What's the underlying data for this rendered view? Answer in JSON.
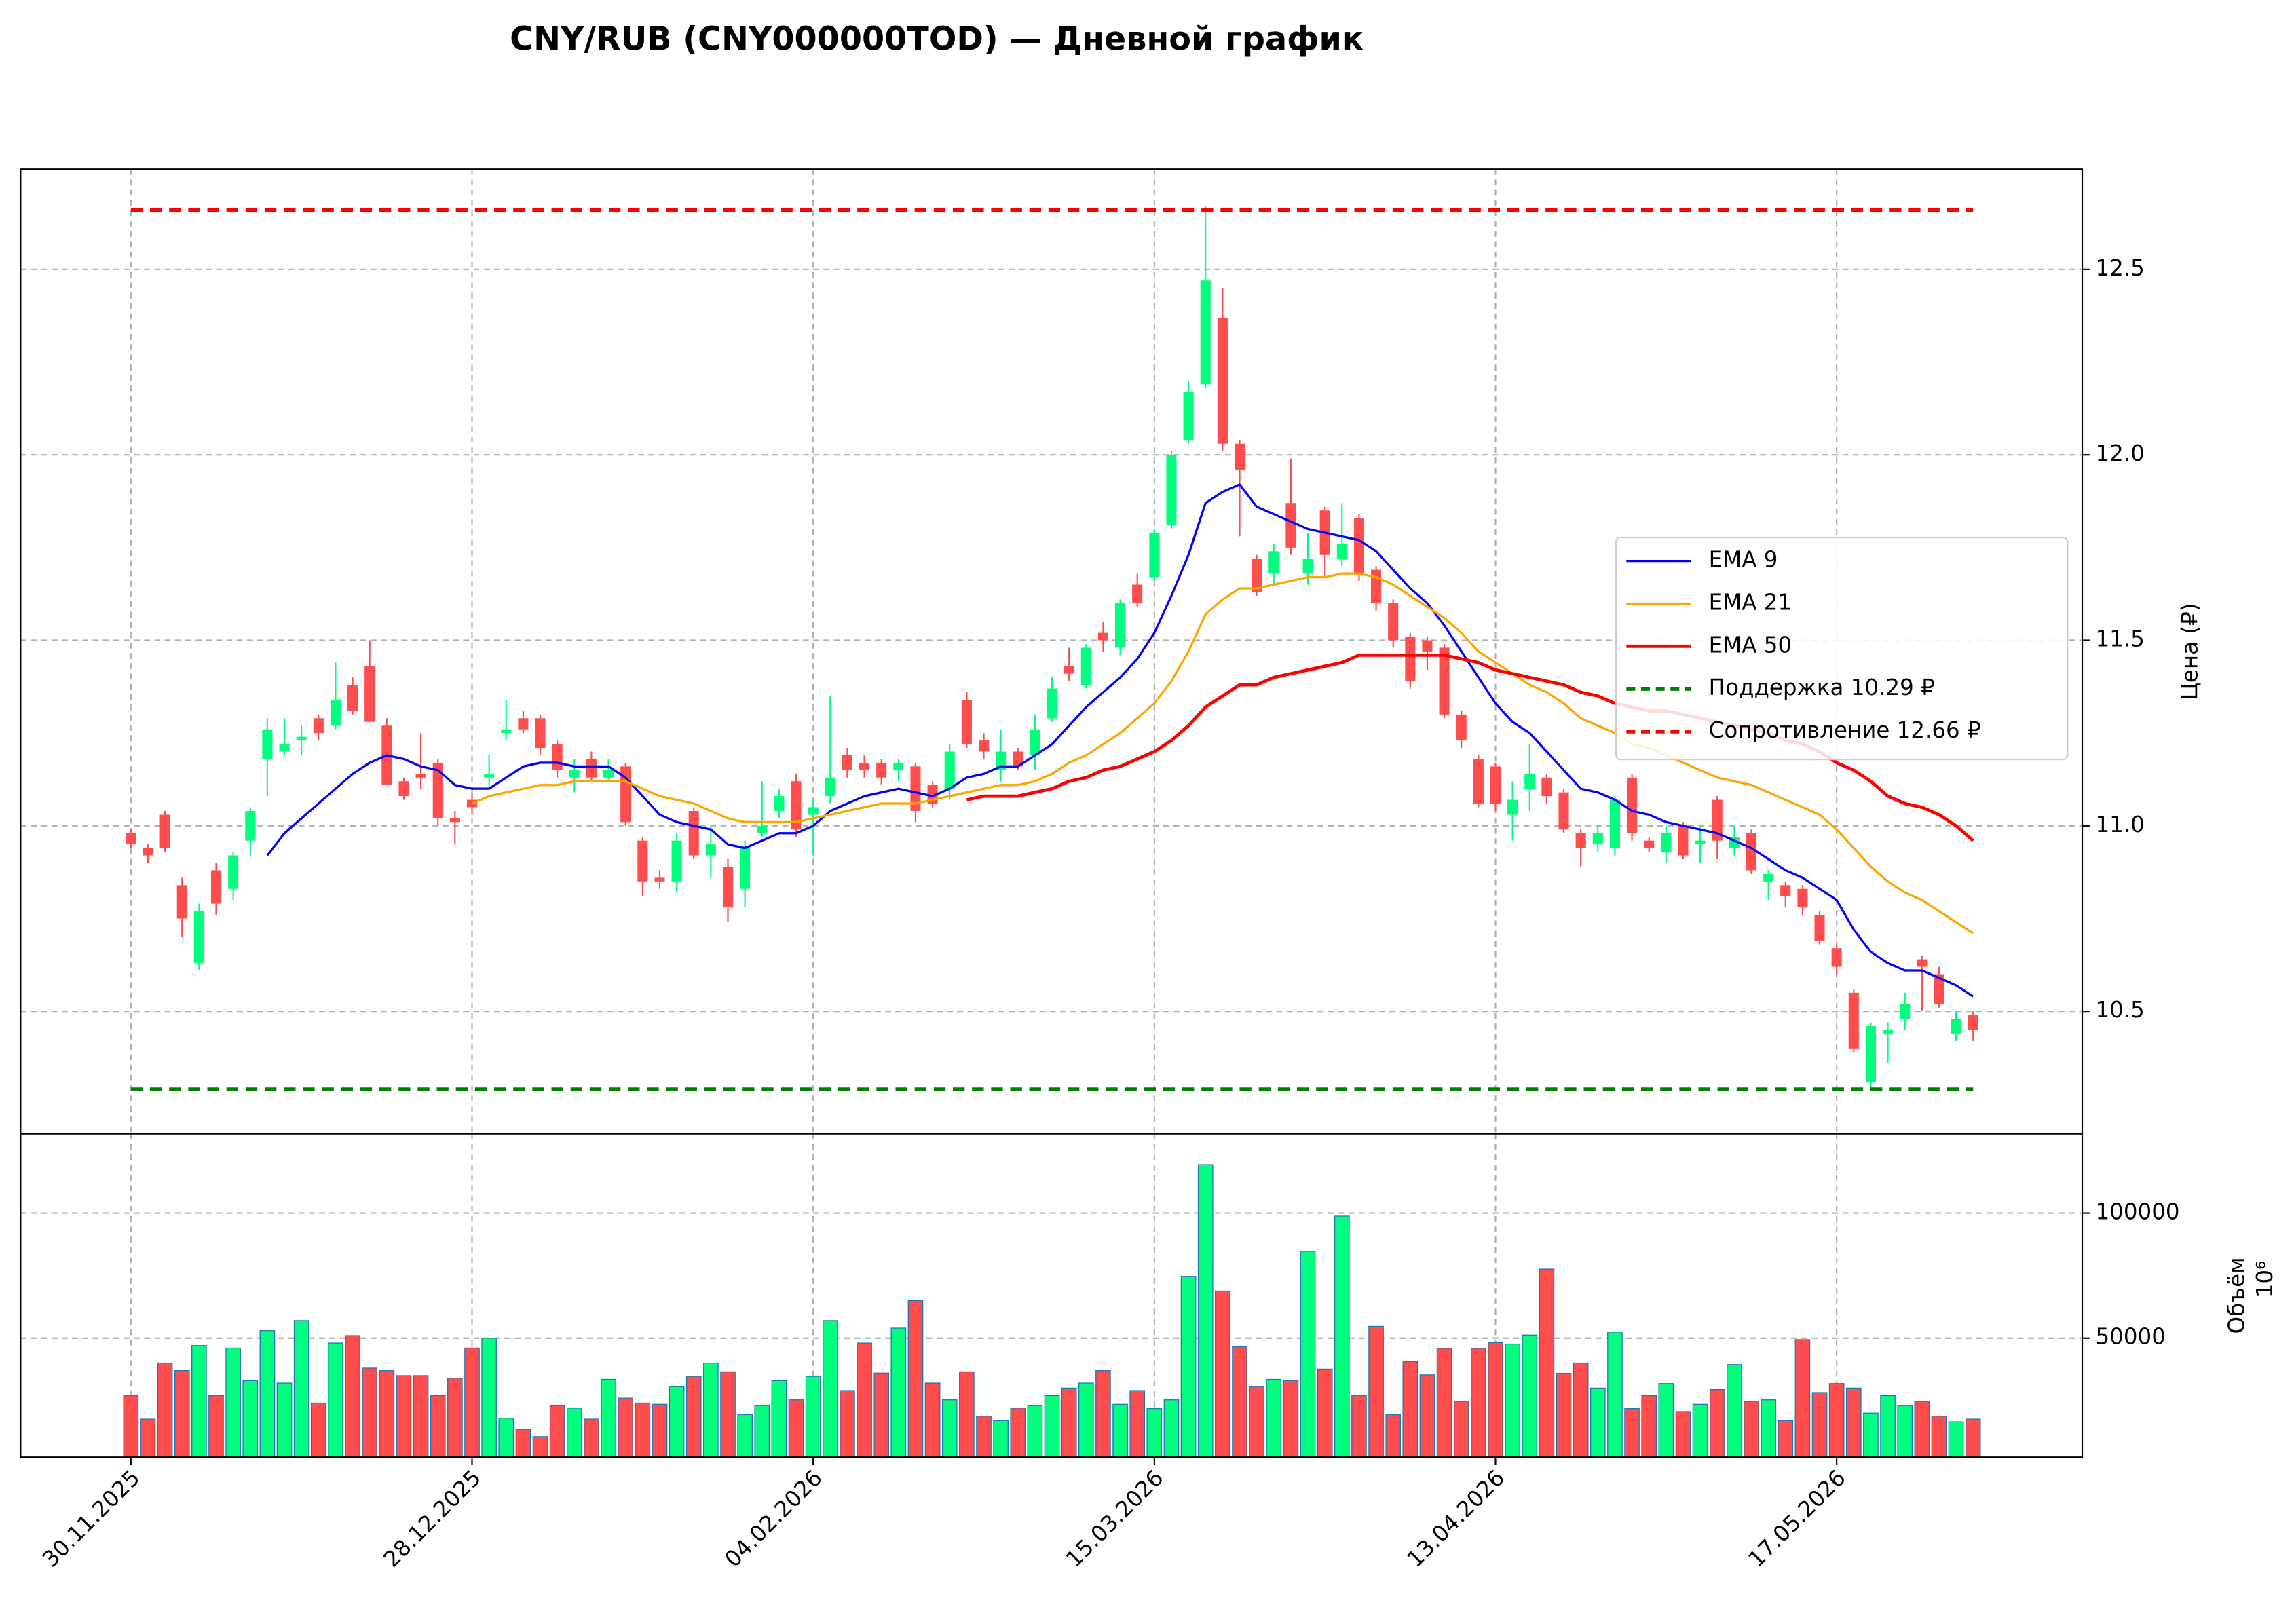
{
  "chart_data": {
    "type": "candlestick",
    "title": "CNY/RUB (CNY000000TOD) — Дневной график",
    "ylabel": "Цена (₽)",
    "grid": true,
    "legend": "right",
    "up_color": "#00ff7f",
    "down_color": "#ff4c4c",
    "categories": [
      "30.11.2025",
      null,
      null,
      null,
      null,
      null,
      null,
      null,
      null,
      null,
      null,
      null,
      null,
      null,
      null,
      null,
      null,
      null,
      null,
      null,
      "28.12.2025",
      null,
      null,
      null,
      null,
      null,
      null,
      null,
      null,
      null,
      null,
      null,
      null,
      null,
      null,
      null,
      null,
      null,
      null,
      null,
      "04.02.2026",
      null,
      null,
      null,
      null,
      null,
      null,
      null,
      null,
      null,
      null,
      null,
      null,
      null,
      null,
      null,
      null,
      null,
      null,
      null,
      "15.03.2026",
      null,
      null,
      null,
      null,
      null,
      null,
      null,
      null,
      null,
      null,
      null,
      null,
      null,
      null,
      null,
      null,
      null,
      null,
      null,
      "13.04.2026",
      null,
      null,
      null,
      null,
      null,
      null,
      null,
      null,
      null,
      null,
      null,
      null,
      null,
      null,
      null,
      null,
      null,
      null,
      null,
      "17.05.2026",
      null,
      null,
      null,
      null,
      null,
      null,
      null,
      null
    ],
    "open": [
      10.98,
      10.94,
      11.03,
      10.84,
      10.63,
      10.88,
      10.83,
      10.96,
      11.18,
      11.2,
      11.23,
      11.29,
      11.27,
      11.38,
      11.43,
      11.27,
      11.12,
      11.14,
      11.17,
      11.02,
      11.07,
      11.13,
      11.25,
      11.29,
      11.29,
      11.22,
      11.13,
      11.18,
      11.13,
      11.16,
      10.96,
      10.86,
      10.85,
      11.04,
      10.92,
      10.89,
      10.83,
      10.98,
      11.04,
      11.12,
      11.03,
      11.08,
      11.19,
      11.17,
      11.17,
      11.15,
      11.16,
      11.11,
      11.1,
      11.34,
      11.23,
      11.15,
      11.2,
      11.19,
      11.29,
      11.43,
      11.38,
      11.52,
      11.48,
      11.65,
      11.67,
      11.81,
      12.04,
      12.19,
      12.37,
      12.03,
      11.72,
      11.68,
      11.87,
      11.68,
      11.85,
      11.72,
      11.83,
      11.69,
      11.6,
      11.51,
      11.5,
      11.48,
      11.3,
      11.18,
      11.16,
      11.03,
      11.1,
      11.13,
      11.09,
      10.98,
      10.95,
      10.94,
      11.13,
      10.96,
      10.93,
      11.0,
      10.95,
      11.07,
      10.94,
      10.98,
      10.85,
      10.84,
      10.83,
      10.76,
      10.67,
      10.55,
      10.31,
      10.44,
      10.48,
      10.64,
      10.6,
      10.44,
      10.49
    ],
    "high": [
      10.99,
      10.95,
      11.04,
      10.86,
      10.79,
      10.9,
      10.93,
      11.05,
      11.29,
      11.29,
      11.27,
      11.3,
      11.44,
      11.4,
      11.5,
      11.29,
      11.13,
      11.25,
      11.18,
      11.04,
      11.09,
      11.19,
      11.34,
      11.31,
      11.3,
      11.23,
      11.18,
      11.2,
      11.18,
      11.17,
      10.97,
      10.88,
      10.98,
      11.05,
      11.0,
      10.91,
      10.96,
      11.12,
      11.1,
      11.14,
      11.07,
      11.35,
      11.21,
      11.19,
      11.18,
      11.18,
      11.17,
      11.12,
      11.22,
      11.36,
      11.25,
      11.26,
      11.21,
      11.3,
      11.4,
      11.48,
      11.49,
      11.55,
      11.61,
      11.68,
      11.8,
      12.01,
      12.2,
      12.67,
      12.45,
      12.04,
      11.73,
      11.76,
      11.99,
      11.79,
      11.86,
      11.87,
      11.84,
      11.7,
      11.61,
      11.52,
      11.51,
      11.49,
      11.31,
      11.19,
      11.17,
      11.12,
      11.22,
      11.14,
      11.1,
      10.99,
      11.0,
      11.08,
      11.14,
      10.97,
      11.0,
      11.01,
      11.0,
      11.08,
      11.0,
      10.99,
      10.88,
      10.85,
      10.84,
      10.77,
      10.68,
      10.56,
      10.47,
      10.47,
      10.55,
      10.65,
      10.62,
      10.5,
      10.5
    ],
    "low": [
      10.94,
      10.9,
      10.93,
      10.7,
      10.61,
      10.76,
      10.8,
      10.92,
      11.08,
      11.19,
      11.19,
      11.23,
      11.26,
      11.3,
      11.28,
      11.11,
      11.07,
      11.1,
      11.0,
      10.95,
      11.03,
      11.1,
      11.23,
      11.25,
      11.19,
      11.13,
      11.09,
      11.12,
      11.12,
      11.0,
      10.81,
      10.83,
      10.82,
      10.91,
      10.86,
      10.74,
      10.78,
      10.97,
      11.02,
      10.97,
      10.92,
      11.06,
      11.13,
      11.13,
      11.11,
      11.12,
      11.01,
      11.05,
      11.07,
      11.21,
      11.18,
      11.12,
      11.15,
      11.15,
      11.28,
      11.39,
      11.37,
      11.47,
      11.46,
      11.59,
      11.66,
      11.8,
      12.03,
      12.18,
      12.01,
      11.78,
      11.62,
      11.65,
      11.73,
      11.65,
      11.67,
      11.7,
      11.66,
      11.58,
      11.48,
      11.37,
      11.42,
      11.29,
      11.21,
      11.05,
      11.04,
      10.96,
      11.04,
      11.06,
      10.98,
      10.89,
      10.93,
      10.92,
      10.96,
      10.93,
      10.9,
      10.91,
      10.9,
      10.91,
      10.92,
      10.87,
      10.8,
      10.78,
      10.76,
      10.68,
      10.6,
      10.39,
      10.29,
      10.36,
      10.45,
      10.5,
      10.51,
      10.42,
      10.42
    ],
    "close": [
      10.95,
      10.92,
      10.94,
      10.75,
      10.77,
      10.79,
      10.92,
      11.04,
      11.26,
      11.22,
      11.24,
      11.25,
      11.34,
      11.31,
      11.28,
      11.11,
      11.08,
      11.13,
      11.02,
      11.01,
      11.05,
      11.14,
      11.26,
      11.26,
      11.21,
      11.15,
      11.15,
      11.13,
      11.15,
      11.01,
      10.85,
      10.85,
      10.96,
      10.92,
      10.95,
      10.78,
      10.94,
      11.0,
      11.08,
      10.99,
      11.05,
      11.13,
      11.15,
      11.15,
      11.13,
      11.17,
      11.04,
      11.06,
      11.2,
      11.22,
      11.2,
      11.2,
      11.16,
      11.26,
      11.37,
      11.41,
      11.48,
      11.5,
      11.6,
      11.6,
      11.79,
      12.0,
      12.17,
      12.47,
      12.03,
      11.96,
      11.63,
      11.74,
      11.75,
      11.72,
      11.73,
      11.76,
      11.68,
      11.6,
      11.5,
      11.39,
      11.47,
      11.3,
      11.23,
      11.06,
      11.06,
      11.07,
      11.14,
      11.08,
      10.99,
      10.94,
      10.98,
      11.07,
      10.98,
      10.94,
      10.98,
      10.92,
      10.96,
      10.96,
      10.97,
      10.88,
      10.87,
      10.81,
      10.78,
      10.69,
      10.62,
      10.4,
      10.46,
      10.45,
      10.52,
      10.62,
      10.52,
      10.48,
      10.45
    ],
    "ylim": [
      10.17,
      12.77
    ],
    "yticks": [
      10.5,
      {
        "value": 11,
        "label": "11.0"
      },
      11.5,
      {
        "value": 12,
        "label": "12.0"
      },
      12.5
    ],
    "series": [
      {
        "name": "EMA 9",
        "color": "#0000ff",
        "values": [
          null,
          null,
          null,
          null,
          null,
          null,
          null,
          null,
          10.92,
          10.98,
          11.02,
          11.06,
          11.1,
          11.14,
          11.17,
          11.19,
          11.18,
          11.16,
          11.15,
          11.11,
          11.1,
          11.1,
          11.13,
          11.16,
          11.17,
          11.17,
          11.16,
          11.16,
          11.16,
          11.13,
          11.08,
          11.03,
          11.01,
          11.0,
          10.99,
          10.95,
          10.94,
          10.96,
          10.98,
          10.98,
          11.0,
          11.04,
          11.06,
          11.08,
          11.09,
          11.1,
          11.09,
          11.08,
          11.1,
          11.13,
          11.14,
          11.16,
          11.16,
          11.19,
          11.22,
          11.27,
          11.32,
          11.36,
          11.4,
          11.45,
          11.52,
          11.62,
          11.73,
          11.87,
          11.9,
          11.92,
          11.86,
          11.84,
          11.82,
          11.8,
          11.79,
          11.78,
          11.77,
          11.74,
          11.69,
          11.64,
          11.6,
          11.54,
          11.47,
          11.4,
          11.33,
          11.28,
          11.25,
          11.2,
          11.15,
          11.1,
          11.09,
          11.07,
          11.04,
          11.03,
          11.01,
          11.0,
          10.99,
          10.98,
          10.96,
          10.94,
          10.91,
          10.88,
          10.86,
          10.83,
          10.8,
          10.72,
          10.66,
          10.63,
          10.61,
          10.61,
          10.59,
          10.57,
          10.54
        ]
      },
      {
        "name": "EMA 21",
        "color": "#ffa500",
        "values": [
          null,
          null,
          null,
          null,
          null,
          null,
          null,
          null,
          null,
          null,
          null,
          null,
          null,
          null,
          null,
          null,
          null,
          null,
          null,
          null,
          11.06,
          11.08,
          11.09,
          11.1,
          11.11,
          11.11,
          11.12,
          11.12,
          11.12,
          11.12,
          11.1,
          11.08,
          11.07,
          11.06,
          11.04,
          11.02,
          11.01,
          11.01,
          11.01,
          11.01,
          11.02,
          11.03,
          11.04,
          11.05,
          11.06,
          11.06,
          11.06,
          11.07,
          11.08,
          11.09,
          11.1,
          11.11,
          11.11,
          11.12,
          11.14,
          11.17,
          11.19,
          11.22,
          11.25,
          11.29,
          11.33,
          11.39,
          11.47,
          11.57,
          11.61,
          11.64,
          11.64,
          11.65,
          11.66,
          11.67,
          11.67,
          11.68,
          11.68,
          11.67,
          11.65,
          11.62,
          11.59,
          11.56,
          11.52,
          11.47,
          11.44,
          11.41,
          11.38,
          11.36,
          11.33,
          11.29,
          11.27,
          11.25,
          11.22,
          11.21,
          11.19,
          11.17,
          11.15,
          11.13,
          11.12,
          11.11,
          11.09,
          11.07,
          11.05,
          11.03,
          10.99,
          10.94,
          10.89,
          10.85,
          10.82,
          10.8,
          10.77,
          10.74,
          10.71
        ]
      },
      {
        "name": "EMA 50",
        "color": "#ff0000",
        "values": [
          null,
          null,
          null,
          null,
          null,
          null,
          null,
          null,
          null,
          null,
          null,
          null,
          null,
          null,
          null,
          null,
          null,
          null,
          null,
          null,
          null,
          null,
          null,
          null,
          null,
          null,
          null,
          null,
          null,
          null,
          null,
          null,
          null,
          null,
          null,
          null,
          null,
          null,
          null,
          null,
          null,
          null,
          null,
          null,
          null,
          null,
          null,
          null,
          null,
          11.07,
          11.08,
          11.08,
          11.08,
          11.09,
          11.1,
          11.12,
          11.13,
          11.15,
          11.16,
          11.18,
          11.2,
          11.23,
          11.27,
          11.32,
          11.35,
          11.38,
          11.38,
          11.4,
          11.41,
          11.42,
          11.43,
          11.44,
          11.46,
          11.46,
          11.46,
          11.46,
          11.46,
          11.46,
          11.45,
          11.44,
          11.42,
          11.41,
          11.4,
          11.39,
          11.38,
          11.36,
          11.35,
          11.33,
          11.32,
          11.31,
          11.31,
          11.3,
          11.29,
          11.28,
          11.27,
          11.26,
          11.25,
          11.23,
          11.22,
          11.2,
          11.17,
          11.15,
          11.12,
          11.08,
          11.06,
          11.05,
          11.03,
          11.0,
          10.96
        ]
      }
    ],
    "levels": [
      {
        "name": "Поддержка 10.29 ₽",
        "color": "#008000",
        "value": 10.29
      },
      {
        "name": "Сопротивление 12.66 ₽",
        "color": "#ff0000",
        "value": 12.66
      }
    ],
    "volume": {
      "ylabel": "Объём",
      "offset_label": "10⁶",
      "edge_color": "#1f77b4",
      "values": [
        27000,
        17600,
        40000,
        37000,
        47000,
        27000,
        46000,
        33000,
        53000,
        32000,
        57000,
        24000,
        48000,
        51000,
        38000,
        37000,
        35000,
        35000,
        27000,
        34000,
        46000,
        50000,
        18000,
        13500,
        10600,
        23000,
        22000,
        17600,
        33500,
        26000,
        24000,
        23500,
        30600,
        34700,
        40000,
        36500,
        19400,
        23000,
        33000,
        25300,
        34700,
        57000,
        29000,
        48000,
        36000,
        54000,
        65000,
        32000,
        25300,
        36500,
        18800,
        17000,
        22000,
        23000,
        27000,
        30000,
        32000,
        37000,
        23500,
        29000,
        21800,
        25300,
        74700,
        119400,
        68800,
        46500,
        30600,
        33500,
        33000,
        84700,
        37600,
        98800,
        27000,
        54700,
        19400,
        40600,
        35300,
        45900,
        24700,
        45900,
        48200,
        47600,
        51200,
        77600,
        35900,
        40000,
        30000,
        52400,
        21800,
        27000,
        31800,
        20600,
        23500,
        29400,
        39400,
        24700,
        25300,
        17000,
        49400,
        28200,
        31800,
        30000,
        20000,
        27000,
        23000,
        24700,
        18800,
        16500,
        17600
      ],
      "ylim": [
        2353,
        131765
      ],
      "yticks": [
        50000,
        100000
      ]
    }
  }
}
